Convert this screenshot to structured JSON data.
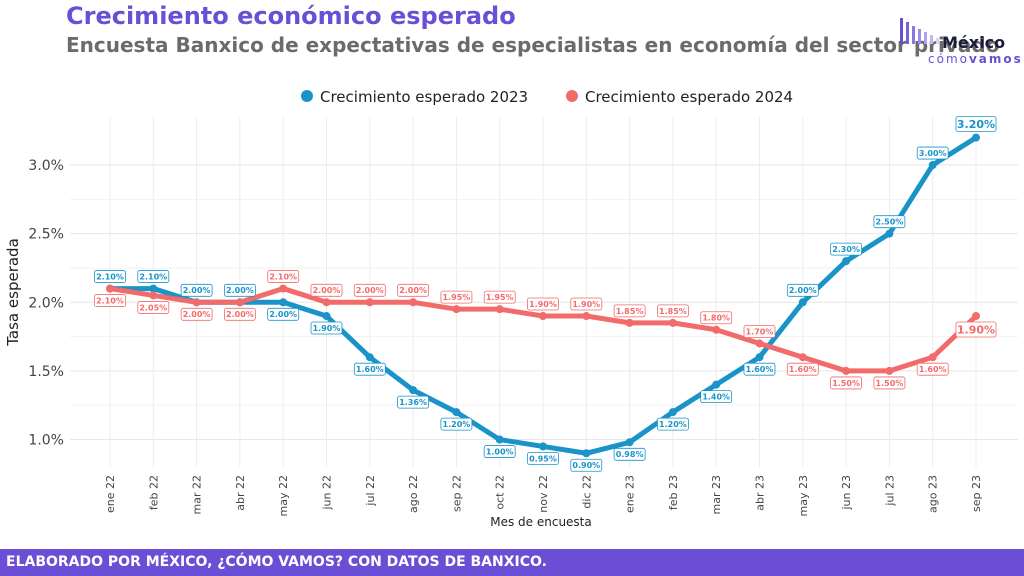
{
  "title": "Crecimiento económico esperado",
  "subtitle": "Encuesta Banxico de expectativas de especialistas en economía del sector privado",
  "logo": {
    "line1": "México",
    "line2a": "cómo",
    "line2b": "vamos"
  },
  "footer": "ELABORADO POR MÉXICO, ¿CÓMO VAMOS? CON DATOS DE BANXICO.",
  "chart_data": {
    "type": "line",
    "title": "Crecimiento económico esperado",
    "subtitle": "Encuesta Banxico de expectativas de especialistas en economía del sector privado",
    "xlabel": "Mes de encuesta",
    "ylabel": "Tasa esperada",
    "categories": [
      "ene 22",
      "feb 22",
      "mar 22",
      "abr 22",
      "may 22",
      "jun 22",
      "jul 22",
      "ago 22",
      "sep 22",
      "oct 22",
      "nov 22",
      "dic 22",
      "ene 23",
      "feb 23",
      "mar 23",
      "abr 23",
      "may 23",
      "jun 23",
      "jul 23",
      "ago 23",
      "sep 23"
    ],
    "ylim": [
      0.8,
      3.35
    ],
    "yticks": [
      1.0,
      1.5,
      2.0,
      2.5,
      3.0
    ],
    "ytick_labels": [
      "1.0%",
      "1.5%",
      "2.0%",
      "2.5%",
      "3.0%"
    ],
    "grid": true,
    "legend_position": "top-center",
    "series": [
      {
        "name": "Crecimiento esperado 2023",
        "color": "#1a93c9",
        "values": [
          2.1,
          2.1,
          2.0,
          2.0,
          2.0,
          1.9,
          1.6,
          1.36,
          1.2,
          1.0,
          0.95,
          0.9,
          0.98,
          1.2,
          1.4,
          1.6,
          2.0,
          2.3,
          2.5,
          3.0,
          3.2
        ],
        "labels": [
          "2.10%",
          "2.10%",
          "2.00%",
          "2.00%",
          "2.00%",
          "1.90%",
          "1.60%",
          "1.36%",
          "1.20%",
          "1.00%",
          "0.95%",
          "0.90%",
          "0.98%",
          "1.20%",
          "1.40%",
          "1.60%",
          "2.00%",
          "2.30%",
          "2.50%",
          "3.00%",
          "3.20%"
        ]
      },
      {
        "name": "Crecimiento esperado 2024",
        "color": "#f26b6b",
        "values": [
          2.1,
          2.05,
          2.0,
          2.0,
          2.1,
          2.0,
          2.0,
          2.0,
          1.95,
          1.95,
          1.9,
          1.9,
          1.85,
          1.85,
          1.8,
          1.7,
          1.6,
          1.5,
          1.5,
          1.6,
          1.9
        ],
        "labels": [
          "2.10%",
          "2.05%",
          "2.00%",
          "2.00%",
          "2.10%",
          "2.00%",
          "2.00%",
          "2.00%",
          "1.95%",
          "1.95%",
          "1.90%",
          "1.90%",
          "1.85%",
          "1.85%",
          "1.80%",
          "1.70%",
          "1.60%",
          "1.50%",
          "1.50%",
          "1.60%",
          "1.90%"
        ]
      }
    ]
  }
}
